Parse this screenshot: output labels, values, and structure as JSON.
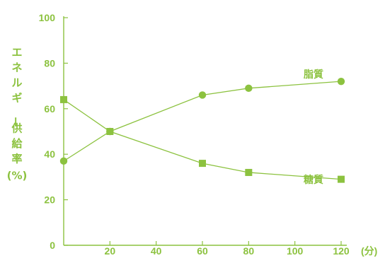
{
  "chart_data": {
    "type": "line",
    "xlim": [
      0,
      120
    ],
    "ylim": [
      0,
      100
    ],
    "x_ticks": [
      "20",
      "40",
      "60",
      "80",
      "100",
      "120"
    ],
    "y_ticks": [
      "0",
      "20",
      "40",
      "60",
      "80",
      "100"
    ],
    "x_unit": "(分)",
    "ylabel": "エネルギー供給率(%)",
    "grid": false,
    "colors": {
      "series": "#8cc23f",
      "text": "#8cc23f",
      "axis": "#8cc23f"
    },
    "series": [
      {
        "name": "脂質",
        "marker": "circle",
        "x": [
          0,
          20,
          60,
          80,
          120
        ],
        "y": [
          37,
          50,
          66,
          69,
          72
        ]
      },
      {
        "name": "糖質",
        "marker": "square",
        "x": [
          0,
          20,
          60,
          80,
          120
        ],
        "y": [
          64,
          50,
          36,
          32,
          29
        ]
      }
    ]
  }
}
